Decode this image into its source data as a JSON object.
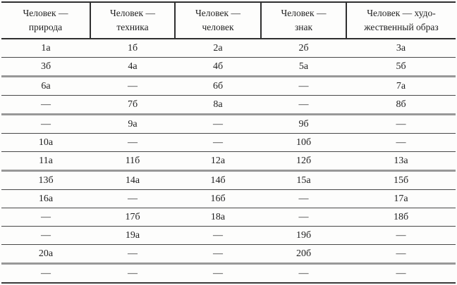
{
  "table": {
    "headers": [
      "Человек —\nприрода",
      "Человек —\nтехника",
      "Человек —\nчеловек",
      "Человек —\nзнак",
      "Человек — худо-\nжественный образ"
    ],
    "rows": [
      [
        "1а",
        "1б",
        "2а",
        "2б",
        "3а"
      ],
      [
        "3б",
        "4а",
        "4б",
        "5а",
        "5б"
      ],
      [
        "6а",
        "—",
        "6б",
        "—",
        "7а"
      ],
      [
        "—",
        "7б",
        "8а",
        "—",
        "8б"
      ],
      [
        "—",
        "9а",
        "—",
        "9б",
        "—"
      ],
      [
        "10а",
        "—",
        "—",
        "10б",
        "—"
      ],
      [
        "11а",
        "11б",
        "12а",
        "12б",
        "13а"
      ],
      [
        "13б",
        "14а",
        "14б",
        "15а",
        "15б"
      ],
      [
        "16а",
        "—",
        "16б",
        "—",
        "17а"
      ],
      [
        "—",
        "17б",
        "18а",
        "—",
        "18б"
      ],
      [
        "—",
        "19а",
        "—",
        "19б",
        "—"
      ],
      [
        "20а",
        "—",
        "—",
        "20б",
        "—"
      ],
      [
        "—",
        "—",
        "—",
        "—",
        "—"
      ]
    ],
    "thick_separator_rows": [
      2,
      4,
      7,
      12
    ],
    "line_color_dark": "#2f2f2f",
    "line_color_gray": "#989898",
    "text_color": "#1f1f1f",
    "background_color": "#fdfdfc"
  }
}
